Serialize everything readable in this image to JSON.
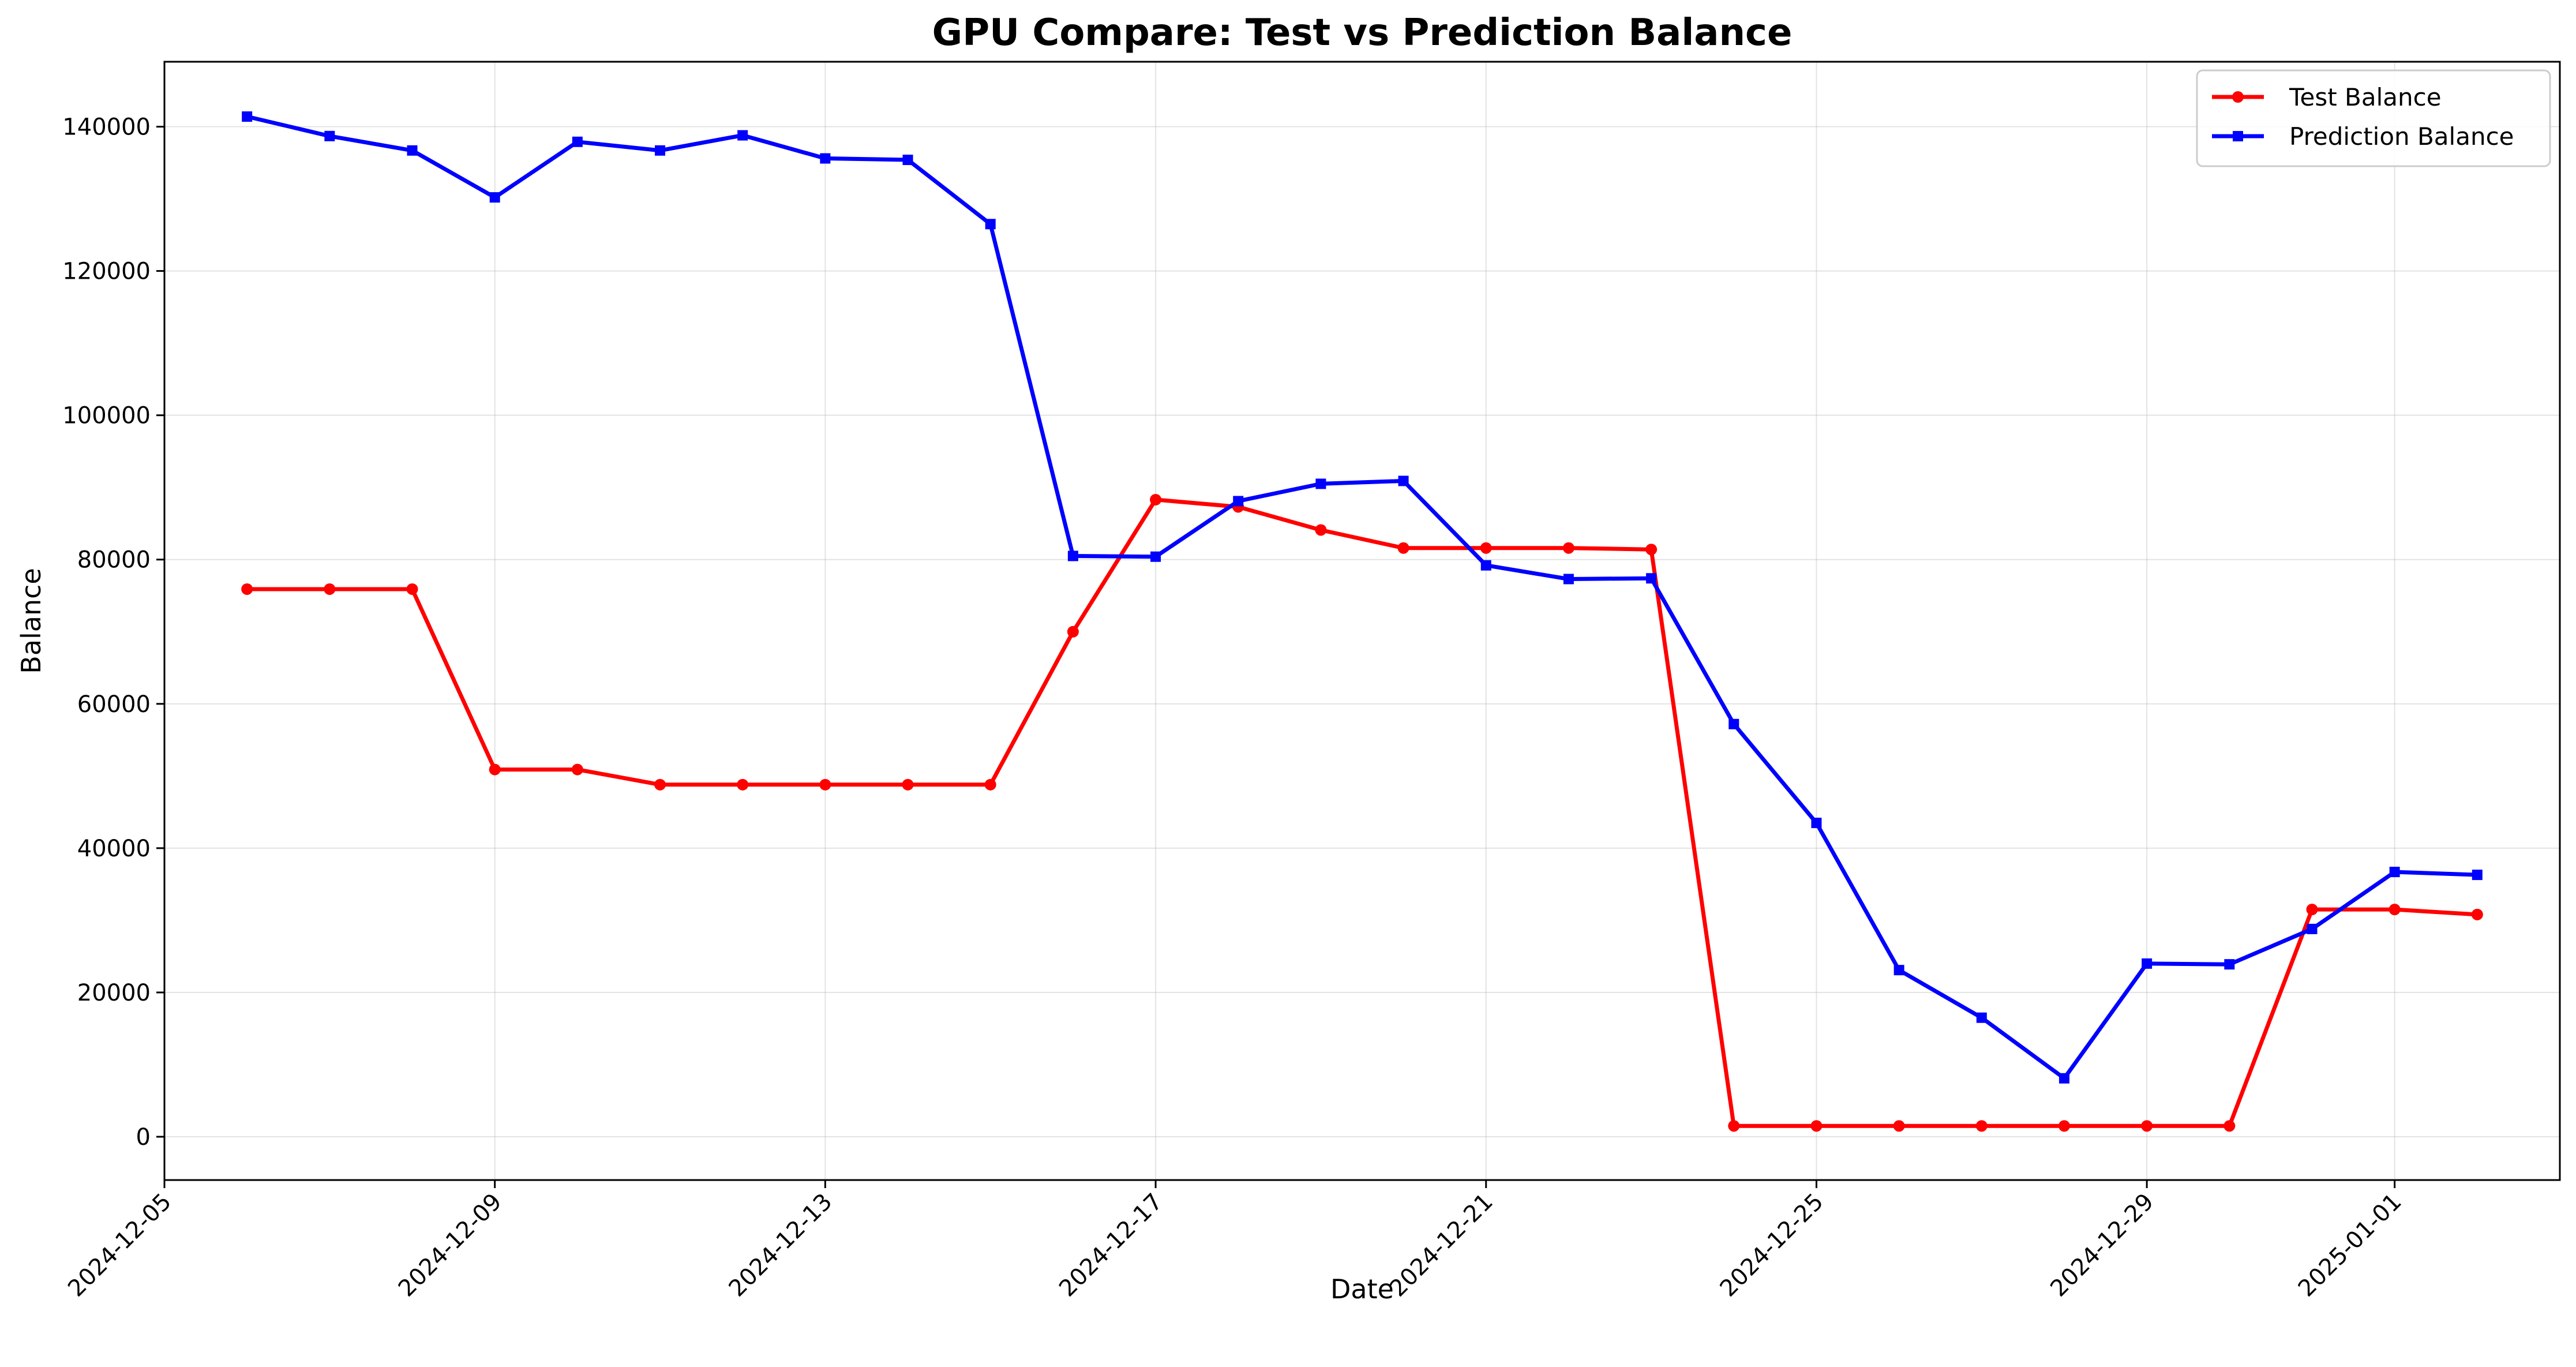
{
  "chart_data": {
    "type": "line",
    "title": "GPU Compare: Test vs Prediction Balance",
    "xlabel": "Date",
    "ylabel": "Balance",
    "x_type": "date",
    "xlim": [
      "2024-12-05",
      "2025-01-03"
    ],
    "ylim": [
      -6000,
      149000
    ],
    "x_ticks": [
      "2024-12-05",
      "2024-12-09",
      "2024-12-13",
      "2024-12-17",
      "2024-12-21",
      "2024-12-25",
      "2024-12-29",
      "2025-01-01"
    ],
    "y_ticks": [
      0,
      20000,
      40000,
      60000,
      80000,
      100000,
      120000,
      140000
    ],
    "grid": true,
    "legend_position": "top-right",
    "x": [
      "2024-12-06",
      "2024-12-07",
      "2024-12-08",
      "2024-12-09",
      "2024-12-10",
      "2024-12-11",
      "2024-12-12",
      "2024-12-13",
      "2024-12-14",
      "2024-12-15",
      "2024-12-16",
      "2024-12-17",
      "2024-12-18",
      "2024-12-19",
      "2024-12-20",
      "2024-12-21",
      "2024-12-22",
      "2024-12-23",
      "2024-12-24",
      "2024-12-25",
      "2024-12-26",
      "2024-12-27",
      "2024-12-28",
      "2024-12-29",
      "2024-12-30",
      "2024-12-31",
      "2025-01-01",
      "2025-01-02"
    ],
    "series": [
      {
        "name": "Test Balance",
        "color": "#ff0000",
        "marker": "circle",
        "values": [
          75900,
          75900,
          75900,
          50900,
          50900,
          48800,
          48800,
          48800,
          48800,
          48800,
          70000,
          88300,
          87300,
          84100,
          81600,
          81600,
          81600,
          81400,
          1500,
          1500,
          1500,
          1500,
          1500,
          1500,
          1500,
          31500,
          31500,
          30800
        ]
      },
      {
        "name": "Prediction Balance",
        "color": "#0000ff",
        "marker": "square",
        "values": [
          141400,
          138700,
          136700,
          130200,
          137900,
          136700,
          138800,
          135600,
          135400,
          126500,
          80500,
          80400,
          88100,
          90500,
          90900,
          79200,
          77300,
          77400,
          57200,
          43500,
          23100,
          16500,
          8100,
          24000,
          23900,
          28800,
          36700,
          36300
        ]
      }
    ]
  }
}
